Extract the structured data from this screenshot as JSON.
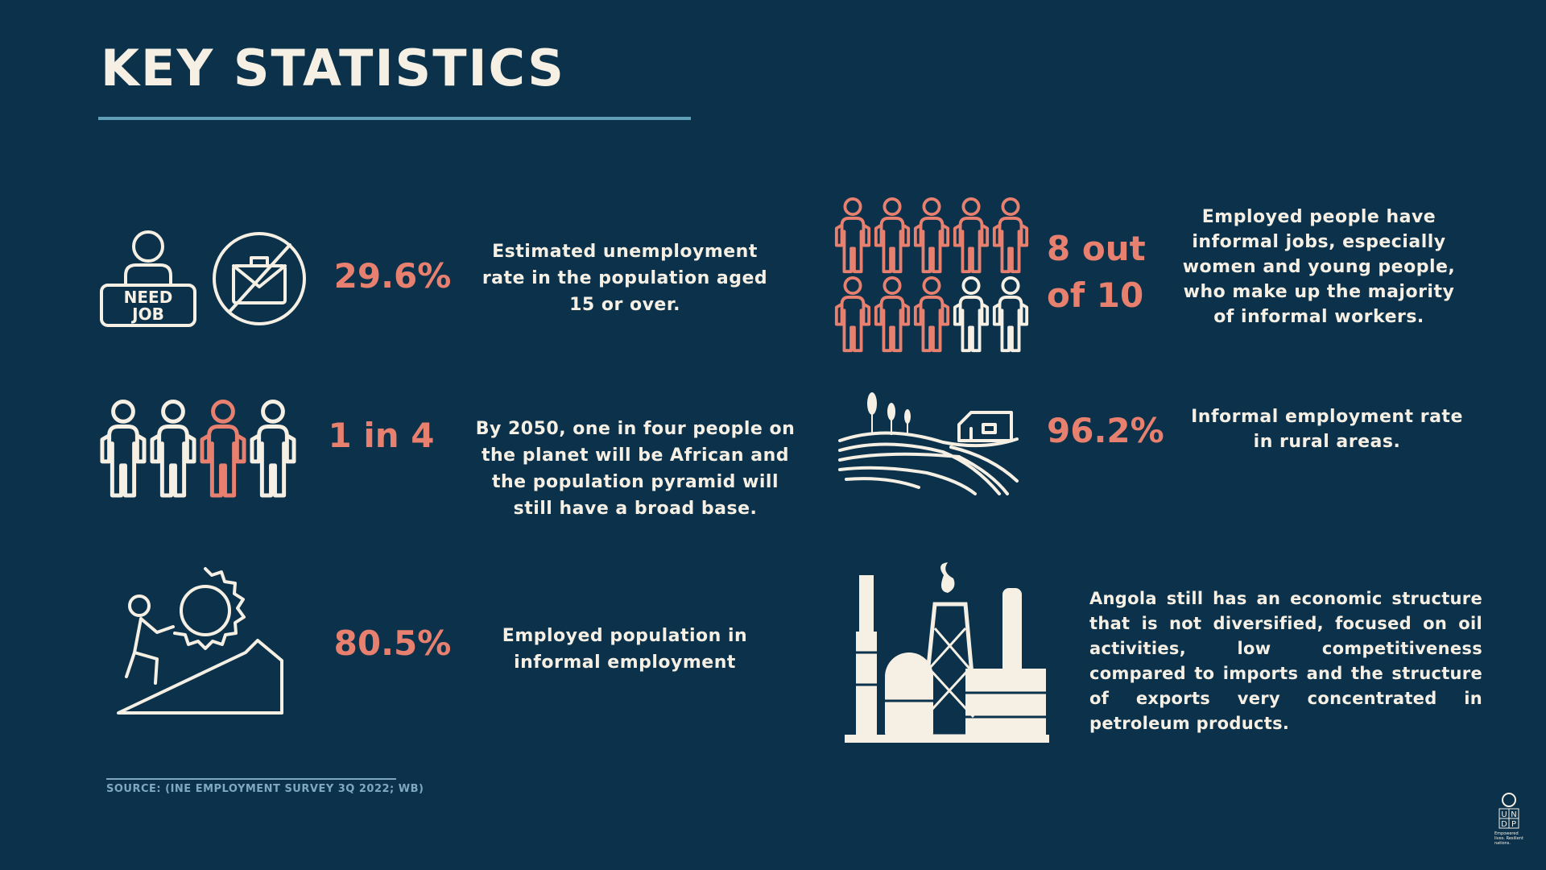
{
  "header": {
    "title": "KEY STATISTICS"
  },
  "stats": [
    {
      "value": "29.6%",
      "description": "Estimated unemployment rate in the population aged 15 or over."
    },
    {
      "value": "1 in 4",
      "description": "By 2050, one in four people on the planet will be African and the population pyramid will still have a broad base."
    },
    {
      "value": "80.5%",
      "description": "Employed population in informal employment"
    },
    {
      "value": "8 out of 10",
      "description": "Employed people have informal jobs, especially women and young people, who make up the majority of informal workers."
    },
    {
      "value": "96.2%",
      "description": "Informal employment rate in rural areas."
    }
  ],
  "note": "Angola still has an economic structure that is not diversified, focused on oil activities, low competitiveness compared to imports and the structure of exports very concentrated in petroleum products.",
  "sign_lines": [
    "NEED",
    "JOB"
  ],
  "source": "SOURCE: (INE EMPLOYMENT SURVEY 3Q 2022; WB)",
  "logo": {
    "letters": [
      "U",
      "N",
      "D",
      "P"
    ],
    "tagline": "Empowered lives. Resilient nations."
  }
}
